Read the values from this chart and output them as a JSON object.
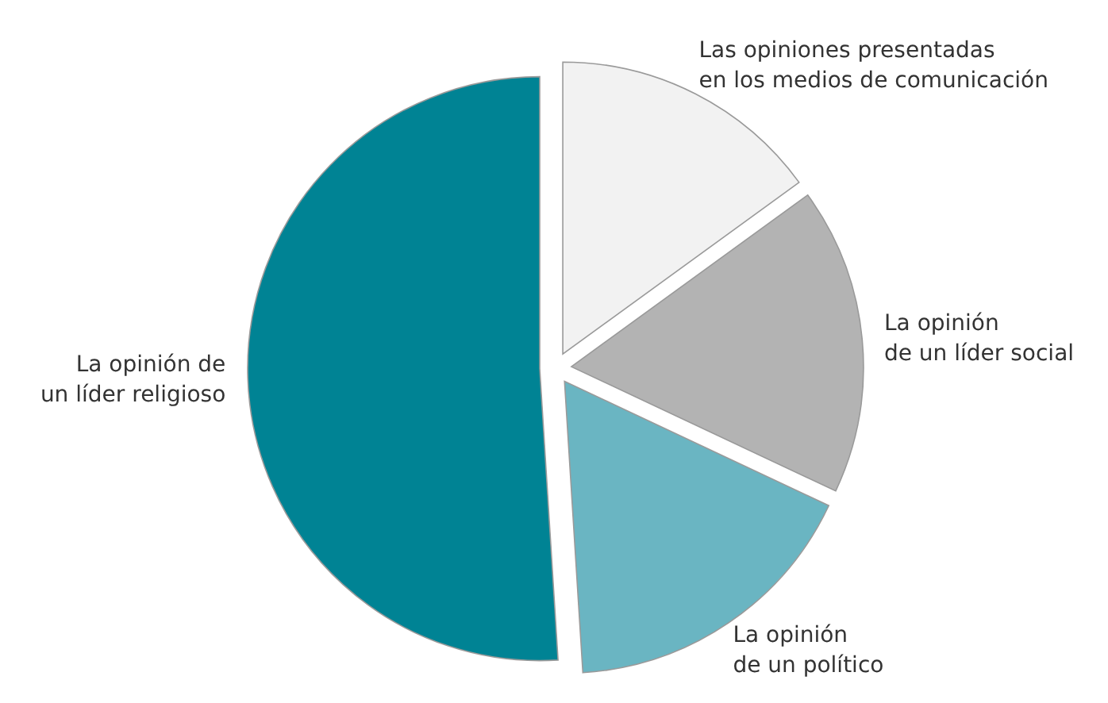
{
  "chart_data": {
    "type": "pie",
    "categories": [
      "Las opiniones presentadas\nen los medios de comunicación",
      "La opinión\nde un líder social",
      "La opinión\nde un político",
      "La opinión de\nun líder religioso"
    ],
    "values": [
      15,
      17,
      17,
      51
    ],
    "colors": [
      "#f2f2f2",
      "#b3b3b3",
      "#6ab5c2",
      "#008394"
    ]
  }
}
